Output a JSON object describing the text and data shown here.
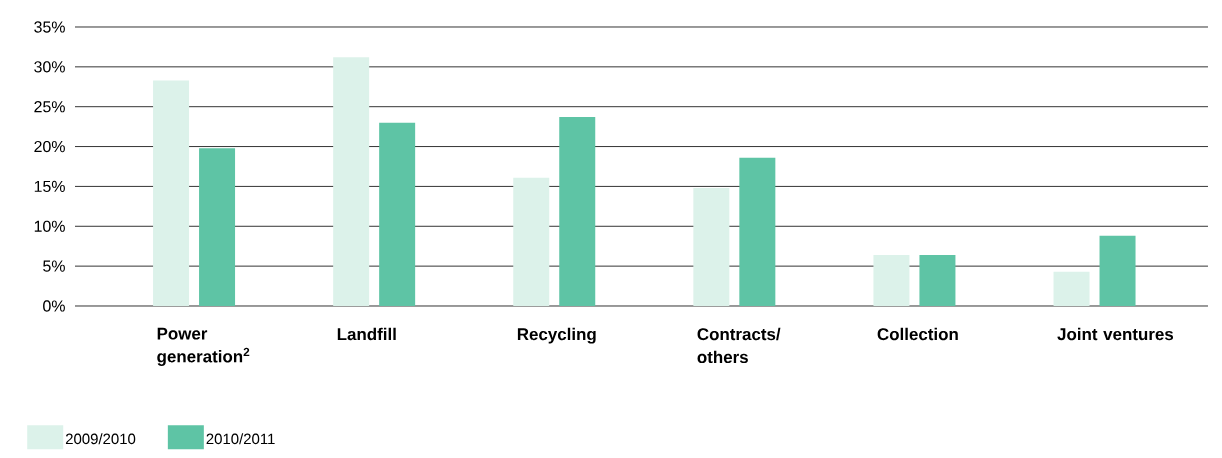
{
  "chart_data": {
    "type": "bar",
    "categories": [
      "**Power generation$^{2}$**",
      "**Landfill**",
      "**Recycling**",
      "**Contracts/ others**",
      "**Collection**",
      "**Joint ventures**"
    ],
    "series": [
      {
        "name": "2009/2010",
        "color": "#dcf2ea",
        "values": [
          28.3,
          31.2,
          16.1,
          14.8,
          6.4,
          4.3
        ]
      },
      {
        "name": "2010/2011",
        "color": "#5ec4a5",
        "values": [
          19.8,
          23.0,
          23.7,
          18.6,
          6.4,
          8.8
        ]
      }
    ],
    "ylim": [
      0,
      35
    ],
    "yticks": [
      {
        "value": 0,
        "label": "0%"
      },
      {
        "value": 5,
        "label": "5%"
      },
      {
        "value": 10,
        "label": "10%"
      },
      {
        "value": 15,
        "label": "15%"
      },
      {
        "value": 20,
        "label": "20%"
      },
      {
        "value": 25,
        "label": "25%"
      },
      {
        "value": 30,
        "label": "30%"
      },
      {
        "value": 35,
        "label": "35%"
      }
    ],
    "grid": "y",
    "legend": "bottom left"
  }
}
